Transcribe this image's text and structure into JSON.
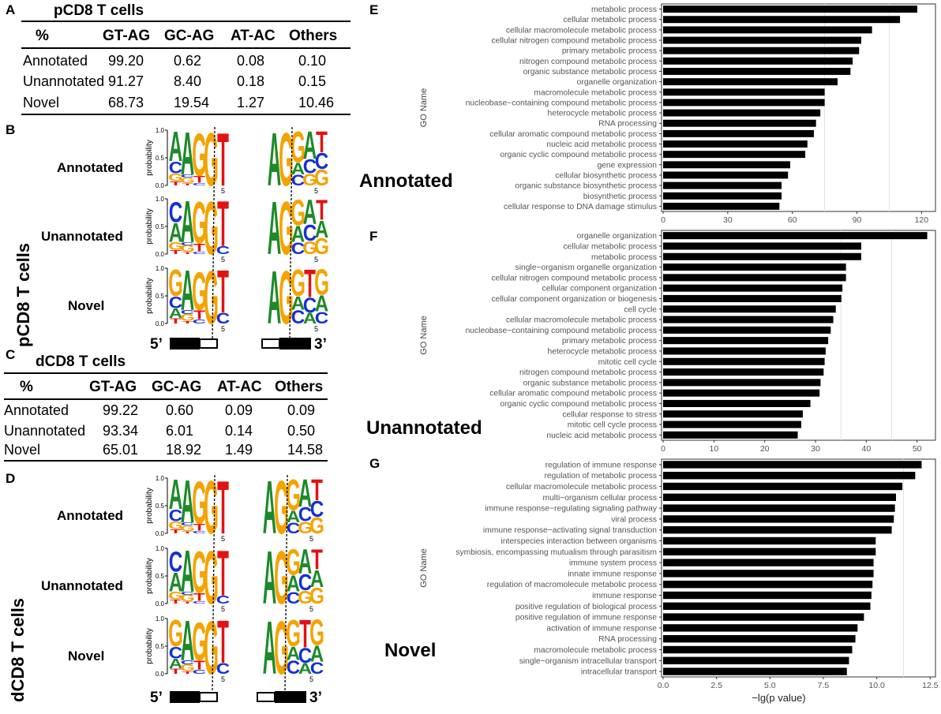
{
  "panel_labels": {
    "A": "A",
    "B": "B",
    "C": "C",
    "D": "D",
    "E": "E",
    "F": "F",
    "G": "G"
  },
  "table_A": {
    "title": "pCD8 T cells",
    "headers": [
      "%",
      "GT-AG",
      "GC-AG",
      "AT-AC",
      "Others"
    ],
    "rows": [
      [
        "Annotated",
        "99.20",
        "0.62",
        "0.08",
        "0.10"
      ],
      [
        "Unannotated",
        "91.27",
        "8.40",
        "0.18",
        "0.15"
      ],
      [
        "Novel",
        "68.73",
        "19.54",
        "1.27",
        "10.46"
      ]
    ]
  },
  "table_C": {
    "title": "dCD8 T cells",
    "headers": [
      "%",
      "GT-AG",
      "GC-AG",
      "AT-AC",
      "Others"
    ],
    "rows": [
      [
        "Annotated",
        "99.22",
        "0.60",
        "0.09",
        "0.09"
      ],
      [
        "Unannotated",
        "93.34",
        "6.01",
        "0.14",
        "0.50"
      ],
      [
        "Novel",
        "65.01",
        "18.92",
        "1.49",
        "14.58"
      ]
    ]
  },
  "logo_B": {
    "vertical_label": "pCD8 T cells",
    "rows": [
      "Annotated",
      "Unannotated",
      "Novel"
    ],
    "axis_label": "probability",
    "ticks": [
      "1.0",
      "0.5",
      "0.0"
    ],
    "pos_label": "5",
    "five_prime": "5’",
    "three_prime": "3’"
  },
  "logo_D": {
    "vertical_label": "dCD8 T cells",
    "rows": [
      "Annotated",
      "Unannotated",
      "Novel"
    ],
    "axis_label": "probability",
    "ticks": [
      "1.0",
      "0.5",
      "0.0"
    ],
    "pos_label": "5",
    "five_prime": "5’",
    "three_prime": "3’"
  },
  "chart_data": [
    {
      "type": "bar",
      "panel": "E",
      "category_label": "Annotated",
      "ylabel": "GO Name",
      "xlim": [
        0,
        125
      ],
      "xticks": [
        0,
        30,
        60,
        90,
        120
      ],
      "xtick_labels": [
        "0",
        "30",
        "60",
        "90",
        "120"
      ],
      "gridlines": [
        75,
        105
      ],
      "categories": [
        "metabolic process",
        "cellular metabolic process",
        "cellular macromolecule metabolic process",
        "cellular nitrogen compound metabolic process",
        "primary metabolic process",
        "nitrogen compound metabolic process",
        "organic substance metabolic process",
        "organelle organization",
        "macromolecule metabolic process",
        "nucleobase−containing compound metabolic process",
        "heterocycle metabolic process",
        "RNA processing",
        "cellular aromatic compound metabolic process",
        "nucleic acid metabolic process",
        "organic cyclic compound metabolic process",
        "gene expression",
        "cellular biosynthetic process",
        "organic substance biosynthetic process",
        "biosynthetic process",
        "cellular response to DNA damage stimulus"
      ],
      "values": [
        118,
        110,
        97,
        92,
        91,
        88,
        87,
        81,
        75,
        75,
        73,
        71,
        70,
        67,
        66,
        59,
        58,
        55,
        55,
        54
      ]
    },
    {
      "type": "bar",
      "panel": "F",
      "category_label": "Unannotated",
      "ylabel": "GO Name",
      "xlim": [
        0,
        53
      ],
      "xticks": [
        0,
        10,
        20,
        30,
        40,
        50
      ],
      "xtick_labels": [
        "0",
        "10",
        "20",
        "30",
        "40",
        "50"
      ],
      "gridlines": [
        35,
        45
      ],
      "categories": [
        "organelle organization",
        "cellular metabolic process",
        "metabolic process",
        "single−organism organelle organization",
        "cellular nitrogen compound metabolic process",
        "cellular component organization",
        "cellular component organization or biogenesis",
        "cell cycle",
        "cellular macromolecule metabolic process",
        "nucleobase−containing compound metabolic process",
        "primary metabolic process",
        "heterocycle metabolic process",
        "mitotic cell cycle",
        "nitrogen compound metabolic process",
        "organic substance metabolic process",
        "cellular aromatic compound metabolic process",
        "organic cyclic compound metabolic process",
        "cellular response to stress",
        "mitotic cell cycle process",
        "nucleic acid metabolic process"
      ],
      "values": [
        52,
        39,
        39,
        36,
        36,
        35.3,
        35.1,
        34,
        33.5,
        33,
        32.5,
        32,
        31.8,
        31.6,
        31,
        30.8,
        29,
        27.5,
        27.2,
        26.5
      ]
    },
    {
      "type": "bar",
      "panel": "G",
      "category_label": "Novel",
      "ylabel": "GO Name",
      "xlabel": "−lg(p value)",
      "xlim": [
        0,
        12.6
      ],
      "xticks": [
        0,
        2.5,
        5,
        7.5,
        10,
        12.5
      ],
      "xtick_labels": [
        "0.0",
        "2.5",
        "5.0",
        "7.5",
        "10.0",
        "12.5"
      ],
      "gridlines": [
        11.25
      ],
      "categories": [
        "regulation of immune response",
        "regulation of metabolic process",
        "cellular macromolecule metabolic process",
        "multi−organism cellular process",
        "immune response−regulating signaling pathway",
        "viral process",
        "immune response−activating signal transduction",
        "interspecies interaction between organisms",
        "symbiosis, encompassing mutualism through parasitism",
        "immune system process",
        "innate immune response",
        "regulation of macromolecule metabolic process",
        "immune response",
        "positive regulation of biological process",
        "positive regulation of immune response",
        "activation of immune response",
        "RNA processing",
        "macromolecule metabolic process",
        "single−organism intracellular transport",
        "intracellular transport"
      ],
      "values": [
        12.1,
        11.8,
        11.2,
        10.9,
        10.85,
        10.8,
        10.7,
        9.95,
        9.95,
        9.85,
        9.85,
        9.8,
        9.75,
        9.7,
        9.4,
        9.1,
        9.0,
        8.85,
        8.7,
        8.6
      ]
    }
  ]
}
